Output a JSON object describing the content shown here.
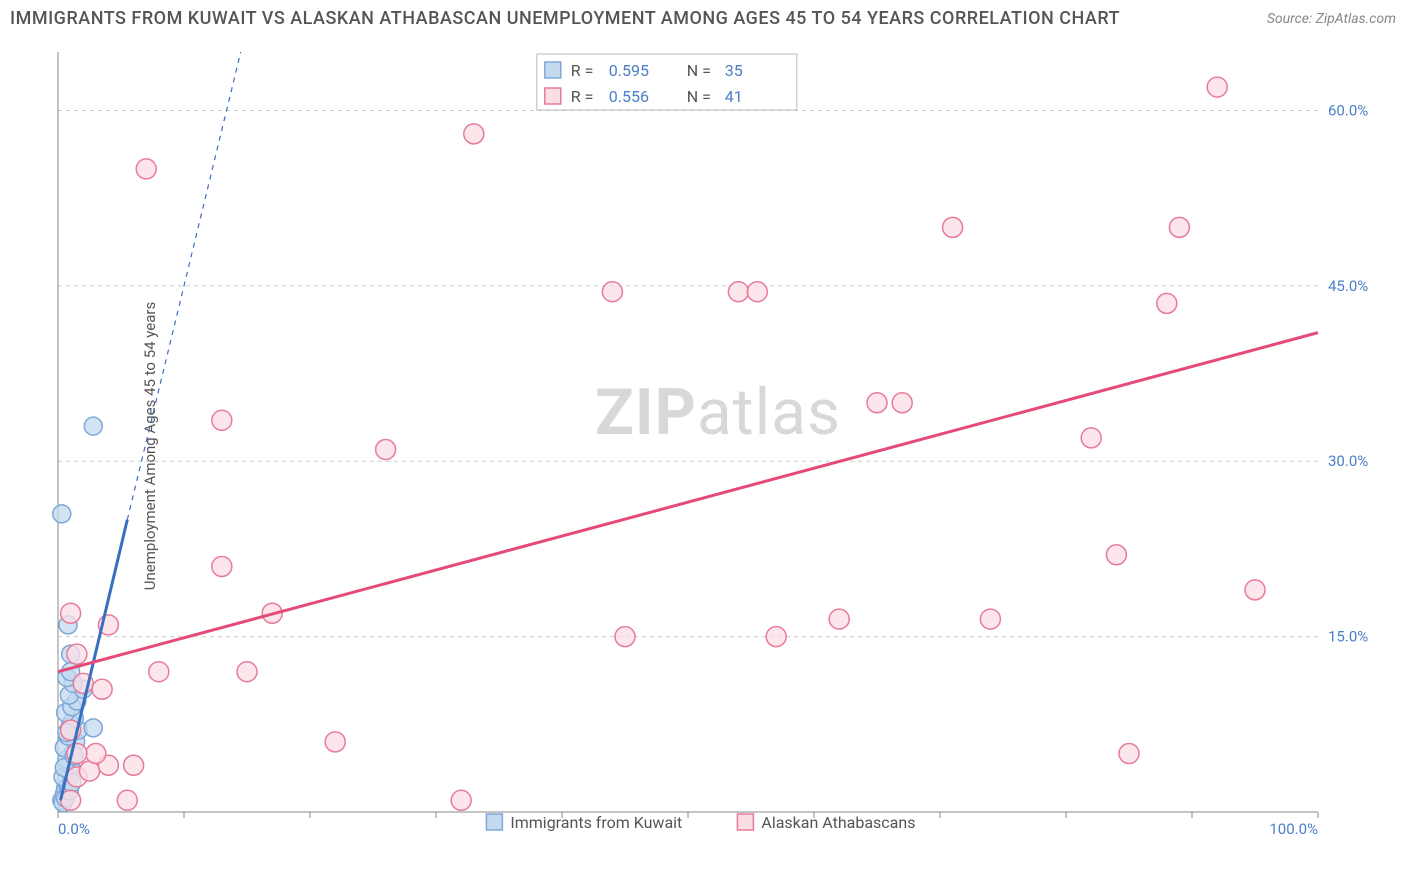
{
  "title": "IMMIGRANTS FROM KUWAIT VS ALASKAN ATHABASCAN UNEMPLOYMENT AMONG AGES 45 TO 54 YEARS CORRELATION CHART",
  "source": "Source: ZipAtlas.com",
  "y_axis_label": "Unemployment Among Ages 45 to 54 years",
  "watermark": {
    "bold": "ZIP",
    "rest": "atlas"
  },
  "chart": {
    "type": "scatter",
    "background_color": "#ffffff",
    "grid_color": "#cccccc",
    "axis_color": "#888888",
    "tick_label_color": "#4a7ec7",
    "xlim": [
      0,
      100
    ],
    "ylim": [
      0,
      65
    ],
    "x_ticks": [
      {
        "v": 0,
        "l": "0.0%"
      },
      {
        "v": 100,
        "l": "100.0%"
      }
    ],
    "y_ticks": [
      {
        "v": 15,
        "l": "15.0%"
      },
      {
        "v": 30,
        "l": "30.0%"
      },
      {
        "v": 45,
        "l": "45.0%"
      },
      {
        "v": 60,
        "l": "60.0%"
      }
    ],
    "series": [
      {
        "name": "Immigrants from Kuwait",
        "marker_color_fill": "#c3d9f0",
        "marker_color_stroke": "#7fa8d8",
        "marker_radius": 9,
        "line_color": "#3a6fc0",
        "line_width_solid": 3,
        "line_width_dash": 1.2,
        "dash": "5 5",
        "trend_solid": {
          "x1": 0.2,
          "y1": 1,
          "x2": 5.5,
          "y2": 25
        },
        "trend_dash": {
          "x1": 5.5,
          "y1": 25,
          "x2": 14.5,
          "y2": 65
        },
        "R": "0.595",
        "N": "35",
        "points": [
          {
            "x": 0.3,
            "y": 1
          },
          {
            "x": 0.5,
            "y": 1.5
          },
          {
            "x": 0.6,
            "y": 2
          },
          {
            "x": 0.8,
            "y": 2.2
          },
          {
            "x": 0.4,
            "y": 3
          },
          {
            "x": 0.9,
            "y": 3.5
          },
          {
            "x": 1.0,
            "y": 4
          },
          {
            "x": 0.7,
            "y": 4.5
          },
          {
            "x": 1.2,
            "y": 5
          },
          {
            "x": 0.5,
            "y": 5.5
          },
          {
            "x": 1.4,
            "y": 6
          },
          {
            "x": 0.8,
            "y": 6.5
          },
          {
            "x": 1.6,
            "y": 7
          },
          {
            "x": 2.8,
            "y": 7.2
          },
          {
            "x": 1.0,
            "y": 7.5
          },
          {
            "x": 1.3,
            "y": 8
          },
          {
            "x": 0.6,
            "y": 8.5
          },
          {
            "x": 1.1,
            "y": 9
          },
          {
            "x": 1.5,
            "y": 9.5
          },
          {
            "x": 0.9,
            "y": 10
          },
          {
            "x": 2.0,
            "y": 10.5
          },
          {
            "x": 1.2,
            "y": 11
          },
          {
            "x": 0.7,
            "y": 11.5
          },
          {
            "x": 1.0,
            "y": 13.5
          },
          {
            "x": 0.8,
            "y": 16
          },
          {
            "x": 0.3,
            "y": 25.5
          },
          {
            "x": 2.8,
            "y": 33
          },
          {
            "x": 0.4,
            "y": 0.8
          },
          {
            "x": 0.6,
            "y": 1.2
          },
          {
            "x": 0.9,
            "y": 1.8
          },
          {
            "x": 1.1,
            "y": 2.5
          },
          {
            "x": 0.5,
            "y": 3.8
          },
          {
            "x": 1.3,
            "y": 4.8
          },
          {
            "x": 0.7,
            "y": 6.8
          },
          {
            "x": 1.0,
            "y": 12
          }
        ]
      },
      {
        "name": "Alaskan Athabascans",
        "marker_color_fill": "#fbdde5",
        "marker_color_stroke": "#e77b9a",
        "marker_radius": 10,
        "line_color": "#e54b77",
        "line_width_solid": 3,
        "trend_solid": {
          "x1": 0,
          "y1": 12,
          "x2": 100,
          "y2": 41
        },
        "R": "0.556",
        "N": "41",
        "points": [
          {
            "x": 1,
            "y": 1
          },
          {
            "x": 5.5,
            "y": 1
          },
          {
            "x": 32,
            "y": 1
          },
          {
            "x": 1.5,
            "y": 3
          },
          {
            "x": 2.5,
            "y": 3.5
          },
          {
            "x": 4,
            "y": 4
          },
          {
            "x": 6,
            "y": 4
          },
          {
            "x": 3,
            "y": 5
          },
          {
            "x": 1.5,
            "y": 5
          },
          {
            "x": 85,
            "y": 5
          },
          {
            "x": 22,
            "y": 6
          },
          {
            "x": 1,
            "y": 7
          },
          {
            "x": 3.5,
            "y": 10.5
          },
          {
            "x": 2,
            "y": 11
          },
          {
            "x": 8,
            "y": 12
          },
          {
            "x": 15,
            "y": 12
          },
          {
            "x": 1.5,
            "y": 13.5
          },
          {
            "x": 45,
            "y": 15
          },
          {
            "x": 4,
            "y": 16
          },
          {
            "x": 62,
            "y": 16.5
          },
          {
            "x": 74,
            "y": 16.5
          },
          {
            "x": 1,
            "y": 17
          },
          {
            "x": 17,
            "y": 17
          },
          {
            "x": 95,
            "y": 19
          },
          {
            "x": 13,
            "y": 21
          },
          {
            "x": 84,
            "y": 22
          },
          {
            "x": 26,
            "y": 31
          },
          {
            "x": 82,
            "y": 32
          },
          {
            "x": 13,
            "y": 33.5
          },
          {
            "x": 65,
            "y": 35
          },
          {
            "x": 67,
            "y": 35
          },
          {
            "x": 88,
            "y": 43.5
          },
          {
            "x": 44,
            "y": 44.5
          },
          {
            "x": 54,
            "y": 44.5
          },
          {
            "x": 55.5,
            "y": 44.5
          },
          {
            "x": 71,
            "y": 50
          },
          {
            "x": 89,
            "y": 50
          },
          {
            "x": 7,
            "y": 55
          },
          {
            "x": 33,
            "y": 58
          },
          {
            "x": 92,
            "y": 62
          },
          {
            "x": 57,
            "y": 15
          }
        ]
      }
    ],
    "stats_legend": {
      "labels": {
        "R": "R =",
        "N": "N ="
      }
    },
    "bottom_legend": {
      "box_size": 16
    }
  }
}
